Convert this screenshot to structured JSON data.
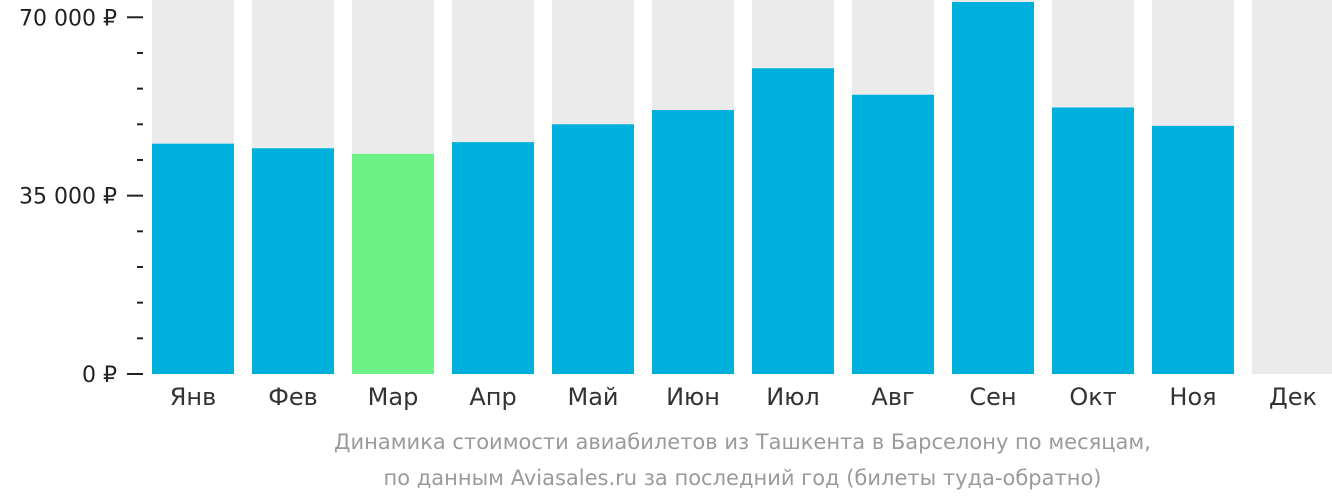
{
  "chart_data": {
    "type": "bar",
    "categories": [
      "Янв",
      "Фев",
      "Мар",
      "Апр",
      "Май",
      "Июн",
      "Июл",
      "Авг",
      "Сен",
      "Окт",
      "Ноя",
      "Дек"
    ],
    "values": [
      45200,
      44300,
      43200,
      45500,
      49000,
      51800,
      60000,
      54800,
      73000,
      52300,
      48700,
      null
    ],
    "highlight_index": 2,
    "ylim": [
      0,
      73000
    ],
    "y_ticks": [
      {
        "value": 0,
        "label": "0 ₽"
      },
      {
        "value": 35000,
        "label": "35 000 ₽"
      },
      {
        "value": 70000,
        "label": "70 000 ₽"
      }
    ],
    "minor_tick_step": 7000,
    "colors": {
      "bar": "#00b0dc",
      "highlight": "#6df288",
      "background_bar": "#ebebeb",
      "axis": "#222222",
      "caption": "#9a9a9a"
    }
  },
  "caption": {
    "line1": "Динамика стоимости авиабилетов из Ташкента в Барселону по месяцам,",
    "line2": "по данным Aviasales.ru за последний год (билеты туда-обратно)"
  }
}
